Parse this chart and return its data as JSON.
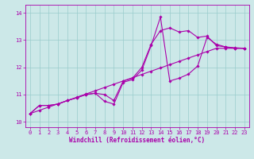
{
  "bg_color": "#cce8e8",
  "line_color": "#aa00aa",
  "grid_color": "#99cccc",
  "xlabel": "Windchill (Refroidissement éolien,°C)",
  "ylim": [
    9.8,
    14.3
  ],
  "xlim": [
    -0.5,
    23.5
  ],
  "yticks": [
    10,
    11,
    12,
    13,
    14
  ],
  "ytick_labels": [
    "10",
    "11",
    "12",
    "13",
    "14"
  ],
  "xticks": [
    0,
    1,
    2,
    3,
    4,
    5,
    6,
    7,
    8,
    9,
    10,
    11,
    12,
    13,
    14,
    15,
    16,
    17,
    18,
    19,
    20,
    21,
    22,
    23
  ],
  "line1_x": [
    0,
    1,
    2,
    3,
    4,
    5,
    6,
    7,
    8,
    9,
    10,
    11,
    12,
    13,
    14,
    15,
    16,
    17,
    18,
    19,
    20,
    21,
    22,
    23
  ],
  "line1_y": [
    10.3,
    10.6,
    10.6,
    10.65,
    10.78,
    10.88,
    11.0,
    11.05,
    10.75,
    10.65,
    11.45,
    11.55,
    11.9,
    12.8,
    13.85,
    11.5,
    11.6,
    11.75,
    12.05,
    13.1,
    12.85,
    12.75,
    12.72,
    12.7
  ],
  "line2_x": [
    0,
    1,
    2,
    3,
    4,
    5,
    6,
    7,
    8,
    9,
    10,
    11,
    12,
    13,
    14,
    15,
    16,
    17,
    18,
    19,
    20,
    21,
    22,
    23
  ],
  "line2_y": [
    10.3,
    10.6,
    10.6,
    10.65,
    10.78,
    10.88,
    11.0,
    11.05,
    11.0,
    10.78,
    11.5,
    11.6,
    12.0,
    12.85,
    13.35,
    13.45,
    13.3,
    13.35,
    13.1,
    13.15,
    12.8,
    12.75,
    12.7,
    12.7
  ],
  "line3_x": [
    0,
    1,
    2,
    3,
    4,
    5,
    6,
    7,
    8,
    9,
    10,
    11,
    12,
    13,
    14,
    15,
    16,
    17,
    18,
    19,
    20,
    21,
    22,
    23
  ],
  "line3_y": [
    10.3,
    10.42,
    10.54,
    10.66,
    10.78,
    10.9,
    11.02,
    11.14,
    11.26,
    11.38,
    11.5,
    11.62,
    11.74,
    11.86,
    11.98,
    12.1,
    12.22,
    12.34,
    12.46,
    12.58,
    12.7,
    12.7,
    12.7,
    12.7
  ],
  "marker": "D",
  "markersize": 1.8,
  "linewidth": 0.8,
  "axis_fontsize": 5.5,
  "tick_fontsize": 5.0
}
